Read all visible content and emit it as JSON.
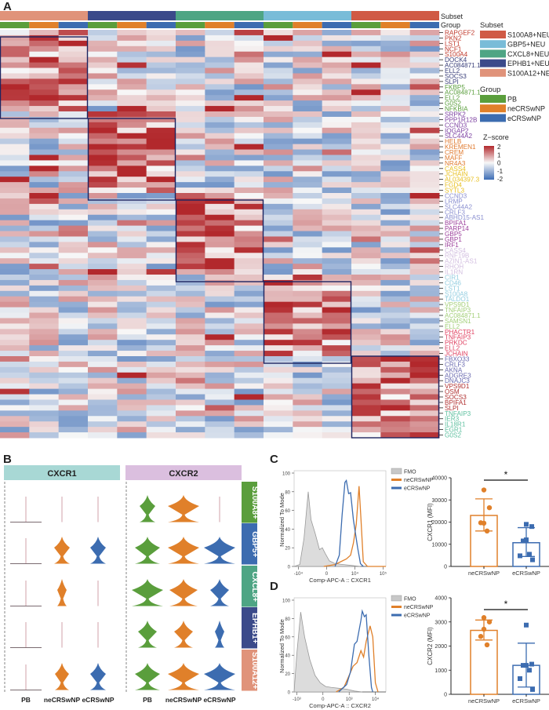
{
  "panels": {
    "a": "A",
    "b": "B",
    "c": "C",
    "d": "D"
  },
  "heatmap": {
    "type": "heatmap",
    "row_annotation_labels": {
      "subset": "Subset",
      "group": "Group"
    },
    "subsets": [
      {
        "name": "S100A12+NEU",
        "color": "#e0937a"
      },
      {
        "name": "EPHB1+NEU",
        "color": "#3b4a8a"
      },
      {
        "name": "CXCL8+NEU",
        "color": "#4ea584"
      },
      {
        "name": "GBP5+NEU",
        "color": "#79bcd8"
      },
      {
        "name": "S100A8+NEU",
        "color": "#d05a45"
      }
    ],
    "groups": [
      {
        "name": "PB",
        "color": "#5a9e3c"
      },
      {
        "name": "neCRSwNP",
        "color": "#e0802a"
      },
      {
        "name": "eCRSwNP",
        "color": "#3c6cb0"
      }
    ],
    "gene_blocks": [
      {
        "color": "#c0392b",
        "genes": [
          "RAPGEF2",
          "PKN2",
          "LST1",
          "NCF1",
          "S100A4"
        ]
      },
      {
        "color": "#3a3f7a",
        "genes": [
          "DOCK4",
          "AC084871.1",
          "ELL2",
          "SOCS3",
          "SLPI"
        ]
      },
      {
        "color": "#5a9e3c",
        "genes": [
          "FKBP5",
          "AC084871.1",
          "ELL2",
          "G0S2",
          "NFKBIA"
        ]
      },
      {
        "color": "#7b3fa0",
        "genes": [
          "SRPK2",
          "PPP1R12B",
          "CCND3",
          "IQGAP2",
          "SLC44A2"
        ]
      },
      {
        "color": "#e07b30",
        "genes": [
          "HELB",
          "KREMEN1",
          "CREM",
          "MAFF",
          "NR4A3"
        ]
      },
      {
        "color": "#e8c020",
        "genes": [
          "CASS4",
          "JCHAIN",
          "AL034397.3",
          "FGD4",
          "SYTL3"
        ]
      },
      {
        "color": "#8a8fd0",
        "genes": [
          "CCND3",
          "LRMP",
          "SLC44A2",
          "CRLF3",
          "ABHD15-AS1"
        ]
      },
      {
        "color": "#9b3f9b",
        "genes": [
          "BPIFA1",
          "PARP14",
          "GBP5",
          "GBP1",
          "IRF1"
        ]
      },
      {
        "color": "#d3bfe0",
        "genes": [
          "CASS4",
          "RNF19B",
          "AZIN1-AS1",
          "RHOH",
          "IL1RN"
        ]
      },
      {
        "color": "#92cde0",
        "genes": [
          "CIR1",
          "CD46",
          "LST1",
          "S100A8",
          "TALDO1"
        ]
      },
      {
        "color": "#a3cf78",
        "genes": [
          "VPS9D1",
          "TNFAIP3",
          "AC084871.1",
          "SAMSN1",
          "ELL2"
        ]
      },
      {
        "color": "#e04060",
        "genes": [
          "PHACTR1",
          "TNFAIP3",
          "PRKDC",
          "ELL2",
          "JCHAIN"
        ]
      },
      {
        "color": "#6a6ab0",
        "genes": [
          "FBXO33",
          "CRLF3",
          "AKNA",
          "ADGRE3",
          "DNAJC3"
        ]
      },
      {
        "color": "#b03030",
        "genes": [
          "VPS9D1",
          "OSM",
          "SOCS3",
          "BPIFA1",
          "SLPI"
        ]
      },
      {
        "color": "#60c0a0",
        "genes": [
          "TNFAIP3",
          "IER3",
          "IL18R1",
          "EGR1",
          "G0S2"
        ]
      }
    ],
    "legend": {
      "subset_title": "Subset",
      "subset_items": [
        {
          "name": "S100A8+NEU",
          "color": "#d05a45"
        },
        {
          "name": "GBP5+NEU",
          "color": "#79bcd8"
        },
        {
          "name": "CXCL8+NEU",
          "color": "#4ea584"
        },
        {
          "name": "EPHB1+NEU",
          "color": "#3b4a8a"
        },
        {
          "name": "S100A12+NEU",
          "color": "#e0937a"
        }
      ],
      "group_title": "Group",
      "group_items": [
        {
          "name": "PB",
          "color": "#5a9e3c"
        },
        {
          "name": "neCRSwNP",
          "color": "#e0802a"
        },
        {
          "name": "eCRSwNP",
          "color": "#3c6cb0"
        }
      ],
      "zscore_title": "Z−score",
      "zscore_ticks": [
        "2",
        "1",
        "0",
        "-1",
        "-2"
      ],
      "zscore_range": [
        -2,
        2
      ],
      "zscore_colors": {
        "low": "#3d6db5",
        "mid": "#f7f7f7",
        "high": "#b2282c"
      }
    }
  },
  "violin": {
    "genes": [
      {
        "name": "CXCR1",
        "color": "#a8d8d5"
      },
      {
        "name": "CXCR2",
        "color": "#dbbfdf"
      }
    ],
    "groups": [
      "PB",
      "neCRSwNP",
      "eCRSwNP"
    ],
    "group_colors": [
      "#5a9e3c",
      "#e0802a",
      "#3c6cb0"
    ],
    "subsets": [
      {
        "name": "S100A8+",
        "color": "#5a9e3c"
      },
      {
        "name": "GBP5+",
        "color": "#3c6cb0"
      },
      {
        "name": "CXCL8+",
        "color": "#4ea584"
      },
      {
        "name": "EPHB1+",
        "color": "#3b4a8a"
      },
      {
        "name": "S100A12+",
        "color": "#e0937a"
      }
    ],
    "relative_width": {
      "CXCR1": [
        [
          0,
          0,
          0
        ],
        [
          0,
          0.5,
          0.5
        ],
        [
          0,
          0.3,
          0
        ],
        [
          0,
          0,
          0
        ],
        [
          0,
          0.45,
          0.5
        ]
      ],
      "CXCR2": [
        [
          0.5,
          1.0,
          0
        ],
        [
          0.8,
          1.0,
          1.0
        ],
        [
          1.0,
          0.9,
          0.6
        ],
        [
          0.6,
          0.6,
          0.3
        ],
        [
          0.8,
          1.0,
          1.0
        ]
      ]
    }
  },
  "flow": [
    {
      "ylabel": "Normalized To Mode",
      "xlabel": "Comp-APC-A :: CXCR1",
      "yticks": [
        "0",
        "20",
        "40",
        "60",
        "80",
        "100"
      ],
      "xticks": [
        {
          "label": "-10⁴",
          "u": 0
        },
        {
          "label": "0",
          "u": 1
        },
        {
          "label": "10⁴",
          "u": 2
        },
        {
          "label": "10⁵",
          "u": 3
        }
      ],
      "xrange": [
        -0.15,
        3.1
      ],
      "legend": [
        {
          "name": "FMO",
          "color": "#c8c8c8"
        },
        {
          "name": "neCRSwNP",
          "color": "#e0802a"
        },
        {
          "name": "eCRSwNP",
          "color": "#3c6cb0"
        }
      ],
      "curves": {
        "FMO": [
          [
            -0.15,
            0
          ],
          [
            0.05,
            2
          ],
          [
            0.2,
            30
          ],
          [
            0.35,
            80
          ],
          [
            0.45,
            50
          ],
          [
            0.6,
            35
          ],
          [
            0.75,
            18
          ],
          [
            0.85,
            20
          ],
          [
            0.95,
            14
          ],
          [
            1.1,
            6
          ],
          [
            1.3,
            3
          ],
          [
            1.6,
            2
          ],
          [
            1.9,
            1
          ],
          [
            2.2,
            0
          ]
        ],
        "neCRSwNP": [
          [
            0.9,
            0
          ],
          [
            1.3,
            2
          ],
          [
            1.5,
            5
          ],
          [
            1.7,
            8
          ],
          [
            1.85,
            12
          ],
          [
            1.95,
            25
          ],
          [
            2.05,
            45
          ],
          [
            2.15,
            86
          ],
          [
            2.22,
            50
          ],
          [
            2.3,
            5
          ],
          [
            2.45,
            0
          ],
          [
            3.1,
            0
          ]
        ],
        "eCRSwNP": [
          [
            1.3,
            0
          ],
          [
            1.45,
            12
          ],
          [
            1.55,
            55
          ],
          [
            1.65,
            90
          ],
          [
            1.7,
            92
          ],
          [
            1.78,
            78
          ],
          [
            1.85,
            79
          ],
          [
            1.95,
            50
          ],
          [
            2.1,
            20
          ],
          [
            2.2,
            3
          ],
          [
            2.3,
            0
          ]
        ]
      }
    },
    {
      "ylabel": "Normalized To Mode",
      "xlabel": "Comp-APC-A :: CXCR2",
      "yticks": [
        "0",
        "20",
        "40",
        "60",
        "80",
        "100"
      ],
      "xticks": [
        {
          "label": "-10³",
          "u": 0
        },
        {
          "label": "0",
          "u": 1
        },
        {
          "label": "10³",
          "u": 2
        },
        {
          "label": "10⁴",
          "u": 3
        }
      ],
      "xrange": [
        -0.1,
        3.4
      ],
      "legend": [
        {
          "name": "FMO",
          "color": "#c8c8c8"
        },
        {
          "name": "neCRSwNP",
          "color": "#e0802a"
        },
        {
          "name": "eCRSwNP",
          "color": "#3c6cb0"
        }
      ],
      "curves": {
        "FMO": [
          [
            -0.1,
            0
          ],
          [
            0.0,
            40
          ],
          [
            0.15,
            87
          ],
          [
            0.3,
            60
          ],
          [
            0.5,
            35
          ],
          [
            0.7,
            18
          ],
          [
            0.9,
            10
          ],
          [
            1.1,
            6
          ],
          [
            1.3,
            5
          ],
          [
            1.6,
            4
          ],
          [
            1.9,
            3
          ],
          [
            2.2,
            1
          ],
          [
            2.5,
            0
          ]
        ],
        "neCRSwNP": [
          [
            1.5,
            0
          ],
          [
            1.8,
            5
          ],
          [
            2.0,
            18
          ],
          [
            2.15,
            28
          ],
          [
            2.3,
            32
          ],
          [
            2.45,
            45
          ],
          [
            2.55,
            38
          ],
          [
            2.65,
            55
          ],
          [
            2.8,
            72
          ],
          [
            2.9,
            60
          ],
          [
            3.0,
            10
          ],
          [
            3.1,
            0
          ]
        ],
        "eCRSwNP": [
          [
            1.6,
            0
          ],
          [
            1.9,
            8
          ],
          [
            2.05,
            22
          ],
          [
            2.2,
            52
          ],
          [
            2.3,
            55
          ],
          [
            2.45,
            78
          ],
          [
            2.5,
            88
          ],
          [
            2.58,
            82
          ],
          [
            2.65,
            84
          ],
          [
            2.75,
            40
          ],
          [
            2.85,
            5
          ],
          [
            2.9,
            0
          ]
        ]
      }
    }
  ],
  "bars": [
    {
      "ylabel": "CXCR1 (MFI)",
      "ylim": [
        0,
        40000
      ],
      "yticks": [
        "0",
        "10000",
        "20000",
        "30000",
        "40000"
      ],
      "significance": "*",
      "groups": [
        {
          "name": "neCRSwNP",
          "color": "#e0802a",
          "mean": 23000,
          "err": [
            16000,
            30500
          ],
          "points": [
            34500,
            26500,
            19500,
            19700,
            16000
          ],
          "marker": "circle"
        },
        {
          "name": "eCRSwNP",
          "color": "#3c6cb0",
          "mean": 10700,
          "err": [
            4500,
            17500
          ],
          "points": [
            19000,
            18000,
            12000,
            11500,
            5500,
            4800,
            3000
          ],
          "marker": "square"
        }
      ]
    },
    {
      "ylabel": "CXCR2 (MFI)",
      "ylim": [
        0,
        4000
      ],
      "yticks": [
        "0",
        "1000",
        "2000",
        "3000",
        "4000"
      ],
      "significance": "*",
      "groups": [
        {
          "name": "neCRSwNP",
          "color": "#e0802a",
          "mean": 2650,
          "err": [
            2250,
            3080
          ],
          "points": [
            3180,
            3000,
            2700,
            2400,
            2050
          ],
          "marker": "circle"
        },
        {
          "name": "eCRSwNP",
          "color": "#3c6cb0",
          "mean": 1200,
          "err": [
            300,
            2120
          ],
          "points": [
            2870,
            1250,
            1200,
            1200,
            1000,
            650,
            200
          ],
          "marker": "square"
        }
      ]
    }
  ]
}
